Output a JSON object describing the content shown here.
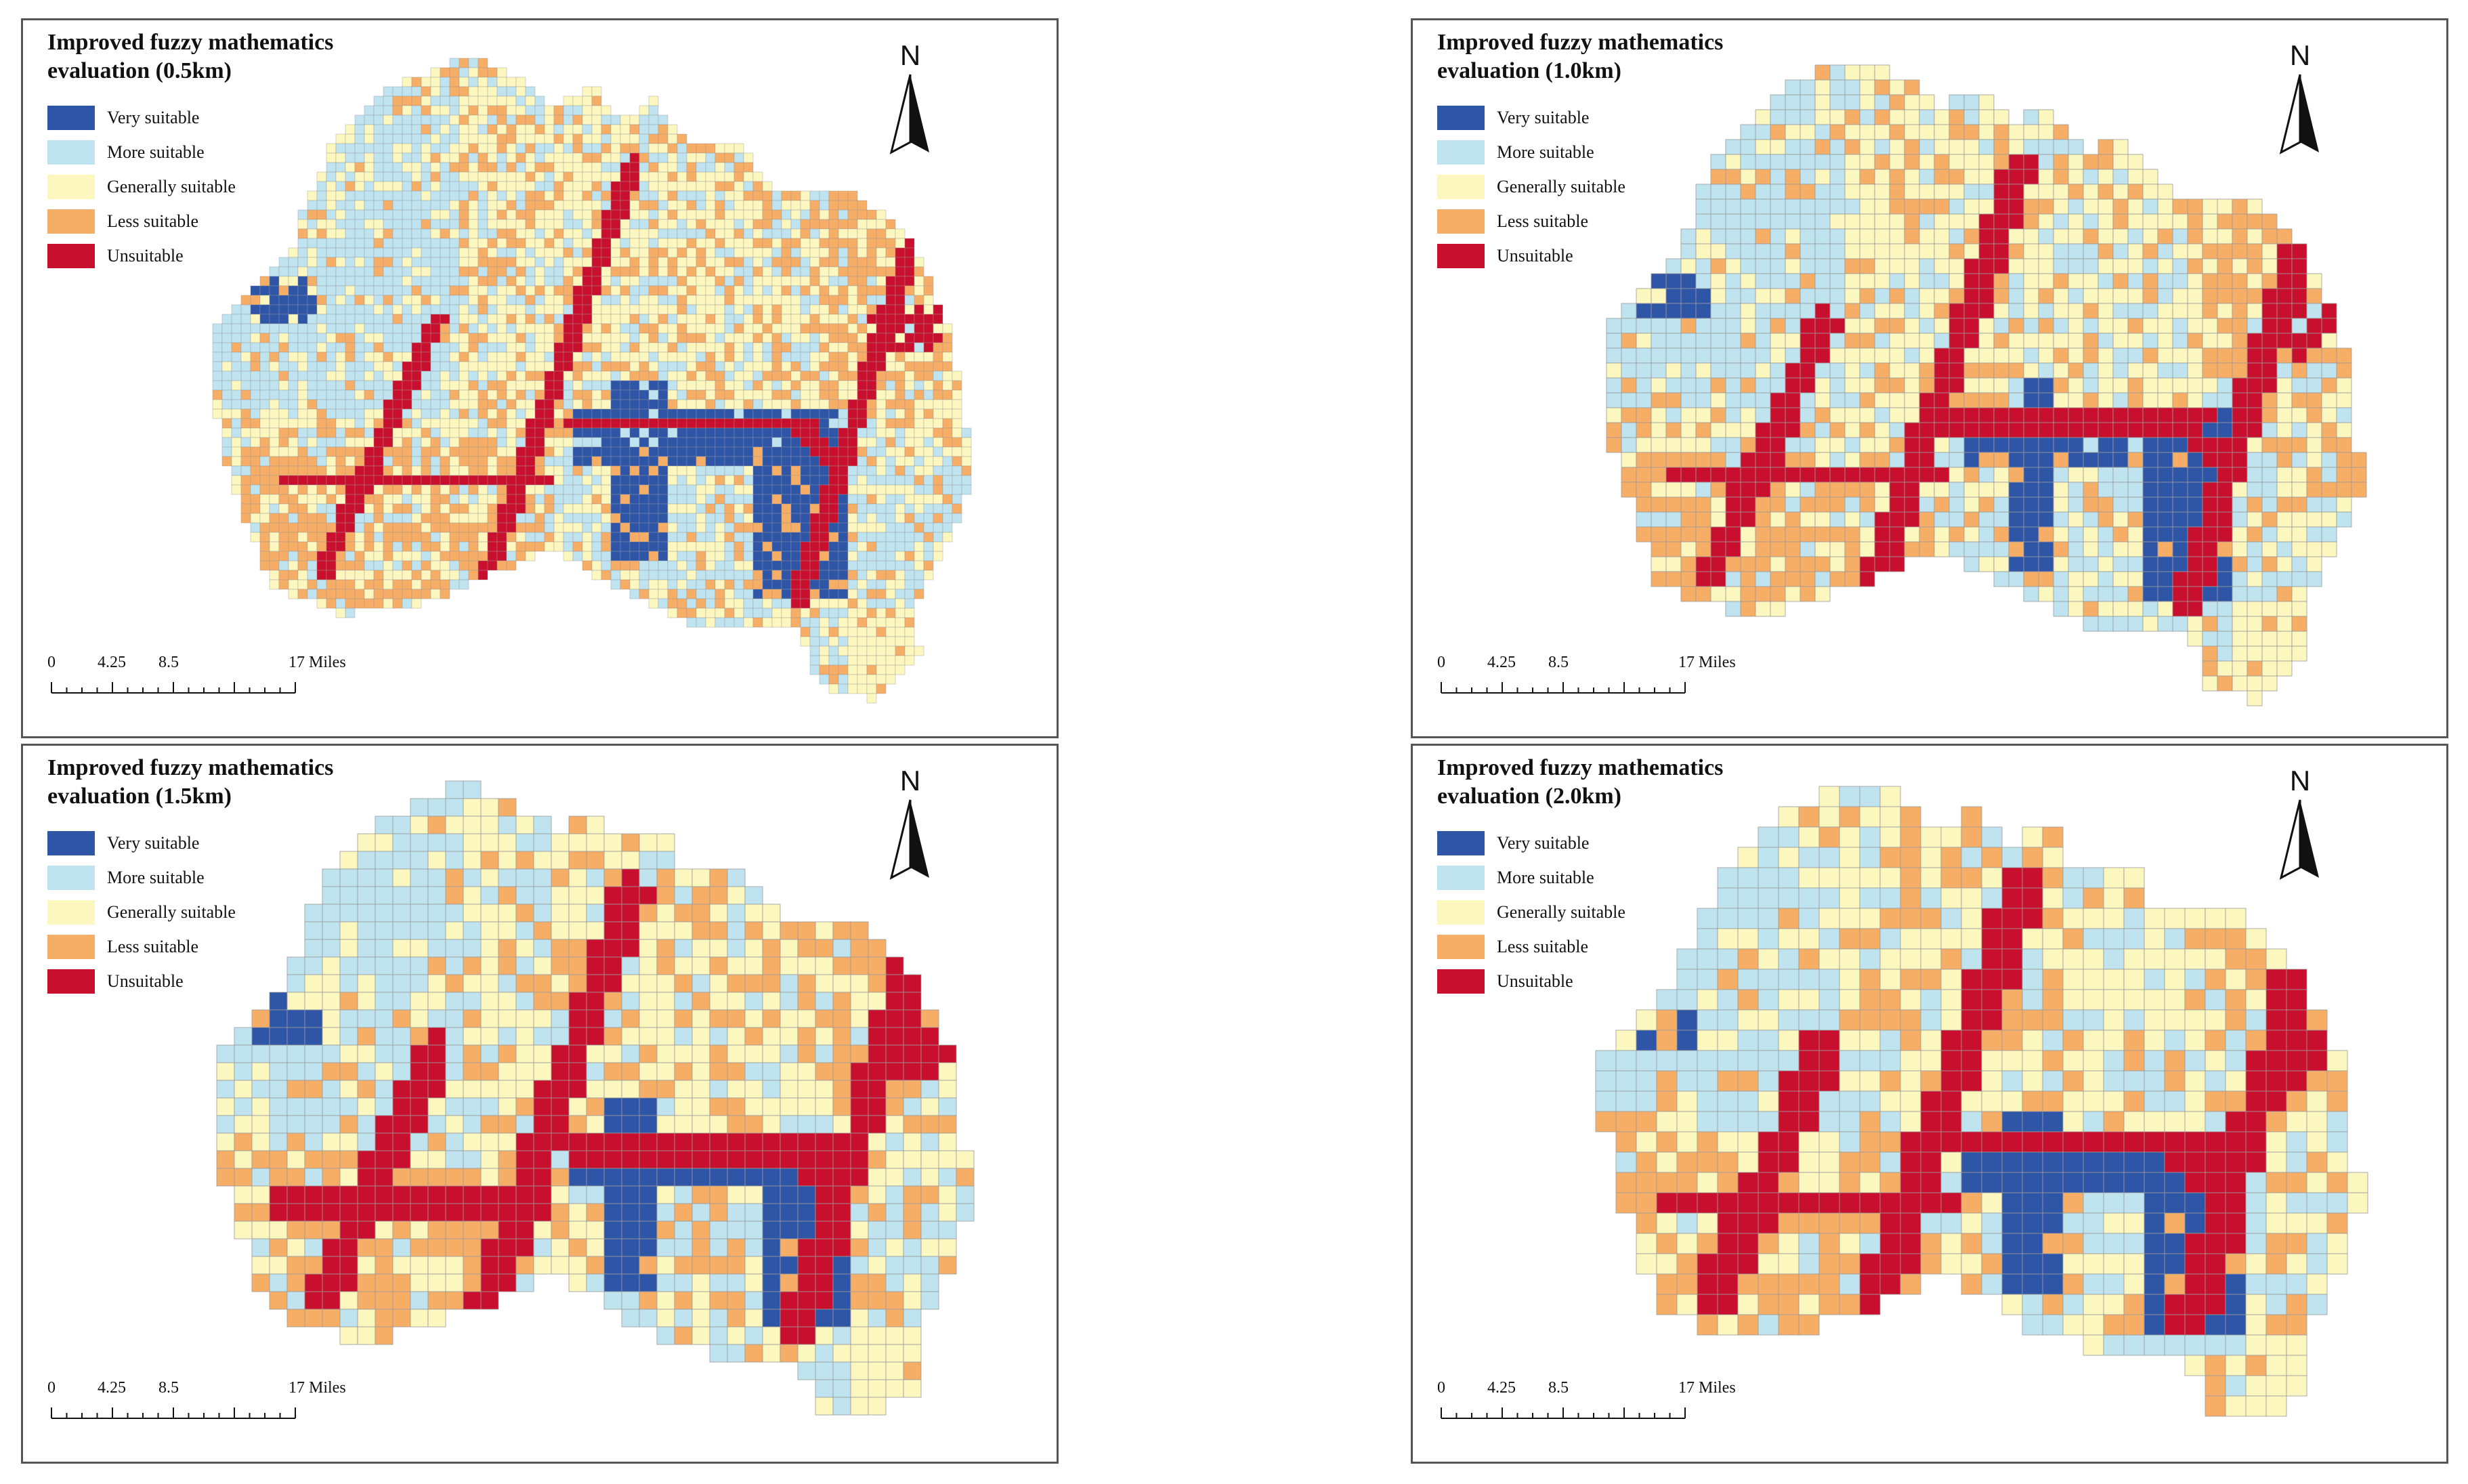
{
  "legend": {
    "items": [
      {
        "key": "very",
        "label": "Very suitable",
        "color": "#2E55A6"
      },
      {
        "key": "more",
        "label": "More suitable",
        "color": "#BFE3EF"
      },
      {
        "key": "general",
        "label": "Generally suitable",
        "color": "#FCF6BF"
      },
      {
        "key": "less",
        "label": "Less suitable",
        "color": "#F6AD66"
      },
      {
        "key": "unsuit",
        "label": "Unsuitable",
        "color": "#C8102E"
      }
    ]
  },
  "north_arrow": {
    "label": "N"
  },
  "scale_bar": {
    "ticks": [
      "0",
      "4.25",
      "8.5",
      "17 Miles"
    ]
  },
  "panels": [
    {
      "id": "p05",
      "title_line1": "Improved fuzzy mathematics",
      "title_line2": "evaluation (0.5km)",
      "cell_km": 0.5
    },
    {
      "id": "p10",
      "title_line1": "Improved fuzzy mathematics",
      "title_line2": "evaluation (1.0km)",
      "cell_km": 1.0
    },
    {
      "id": "p15",
      "title_line1": "Improved fuzzy mathematics",
      "title_line2": "evaluation (1.5km)",
      "cell_km": 1.5
    },
    {
      "id": "p20",
      "title_line1": "Improved fuzzy mathematics",
      "title_line2": "evaluation (2.0km)",
      "cell_km": 2.0
    }
  ]
}
